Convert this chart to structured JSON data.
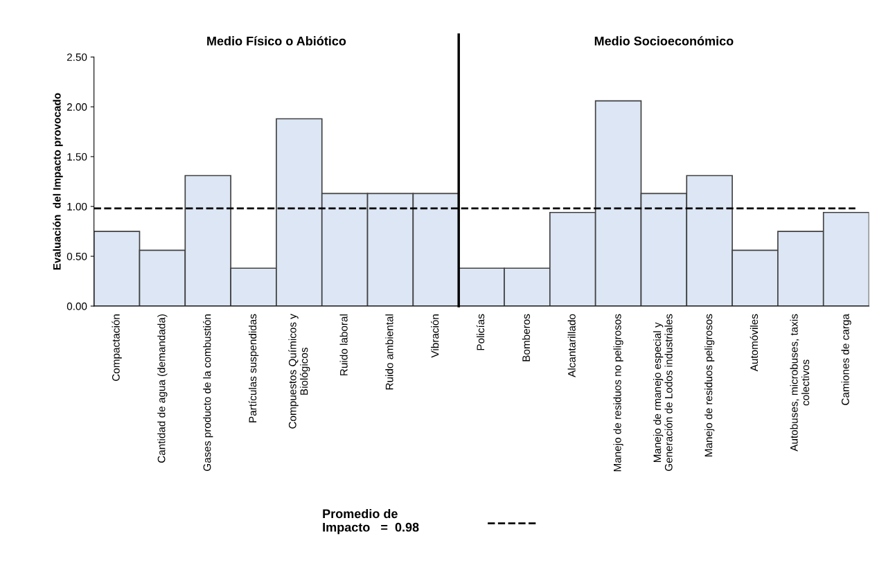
{
  "chart_data": {
    "type": "bar",
    "ylabel": "Evaluación  del Impacto provocado",
    "categories": [
      "Compactación",
      "Cantidad de agua (demandada)",
      "Gases producto de la combustión",
      "Partículas suspendidas",
      "Compuestos Químicos y\nBiológicos",
      "Ruido laboral",
      "Ruido ambiental",
      "Vibración",
      "Policías",
      "Bomberos",
      "Alcantarillado",
      "Manejo de residuos no peligrosos",
      "Manejo de rmanejo especial y\nGeneración de Lodos industriales",
      "Manejo de residuos peligrosos",
      "Automóviles",
      "Autobuses, microbuses, taxis\ncolectivos",
      "Camiones de carga"
    ],
    "values": [
      0.75,
      0.56,
      1.31,
      0.38,
      1.88,
      1.13,
      1.13,
      1.13,
      0.38,
      0.38,
      0.94,
      2.06,
      1.13,
      1.31,
      0.56,
      0.75,
      0.94
    ],
    "color": "#dce6f4",
    "ylim": [
      0,
      2.5
    ],
    "yticks": [
      {
        "value": 0,
        "label": "0.00"
      },
      {
        "value": 0.5,
        "label": "0.50"
      },
      {
        "value": 1,
        "label": "1.00"
      },
      {
        "value": 1.5,
        "label": "1.50"
      },
      {
        "value": 2,
        "label": "2.00"
      },
      {
        "value": 2.5,
        "label": "2.50"
      }
    ],
    "ref_lines": [
      {
        "axis": "y",
        "value": 0.98,
        "label": "Promedio de\nImpacto   =  0.98",
        "color": "#000000",
        "line_style": "dashed"
      }
    ],
    "annotations": [
      "Medio Físico o Abiótico",
      "Medio Socioeconómico"
    ],
    "grid": false
  }
}
